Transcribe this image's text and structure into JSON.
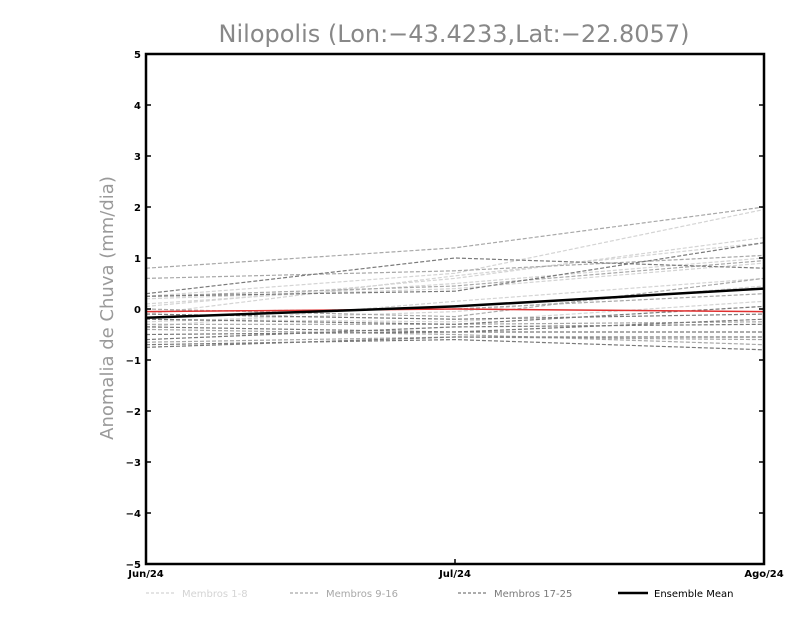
{
  "chart_data": {
    "type": "line",
    "title": "Nilopolis (Lon:−43.4233,Lat:−22.8057)",
    "ylabel": "Anomalia de Chuva (mm/dia)",
    "xlabel": "",
    "categories": [
      "Jun/24",
      "Jul/24",
      "Ago/24"
    ],
    "ylim": [
      -5,
      5
    ],
    "yticks": [
      "5",
      "4",
      "3",
      "2",
      "1",
      "0",
      "−1",
      "−2",
      "−3",
      "−4",
      "−5"
    ],
    "grid": false,
    "legend_position": "bottom",
    "series": [
      {
        "group": 0,
        "values": [
          0.25,
          0.7,
          1.95
        ]
      },
      {
        "group": 0,
        "values": [
          0.05,
          0.6,
          1.4
        ]
      },
      {
        "group": 0,
        "values": [
          -0.1,
          0.65,
          1.3
        ]
      },
      {
        "group": 0,
        "values": [
          0.1,
          0.5,
          1.0
        ]
      },
      {
        "group": 0,
        "values": [
          -0.25,
          -0.05,
          0.45
        ]
      },
      {
        "group": 0,
        "values": [
          -0.35,
          0.15,
          0.6
        ]
      },
      {
        "group": 0,
        "values": [
          -0.2,
          -0.25,
          0.15
        ]
      },
      {
        "group": 0,
        "values": [
          0.2,
          0.4,
          0.9
        ]
      },
      {
        "group": 1,
        "values": [
          0.8,
          1.2,
          2.0
        ]
      },
      {
        "group": 1,
        "values": [
          0.6,
          0.75,
          1.05
        ]
      },
      {
        "group": 1,
        "values": [
          0.25,
          0.45,
          0.95
        ]
      },
      {
        "group": 1,
        "values": [
          -0.05,
          0.0,
          0.3
        ]
      },
      {
        "group": 1,
        "values": [
          -0.4,
          -0.5,
          -0.7
        ]
      },
      {
        "group": 1,
        "values": [
          -0.65,
          -0.55,
          -0.6
        ]
      },
      {
        "group": 1,
        "values": [
          -0.3,
          -0.3,
          -0.25
        ]
      },
      {
        "group": 1,
        "values": [
          0.0,
          -0.15,
          0.6
        ]
      },
      {
        "group": 2,
        "values": [
          0.3,
          1.0,
          0.8
        ]
      },
      {
        "group": 2,
        "values": [
          0.25,
          0.35,
          1.3
        ]
      },
      {
        "group": 2,
        "values": [
          -0.1,
          -0.2,
          -0.1
        ]
      },
      {
        "group": 2,
        "values": [
          -0.2,
          -0.3,
          0.05
        ]
      },
      {
        "group": 2,
        "values": [
          -0.5,
          -0.45,
          -0.45
        ]
      },
      {
        "group": 2,
        "values": [
          -0.7,
          -0.6,
          -0.8
        ]
      },
      {
        "group": 2,
        "values": [
          -0.75,
          -0.55,
          -0.55
        ]
      },
      {
        "group": 2,
        "values": [
          -0.35,
          -0.45,
          -0.2
        ]
      },
      {
        "group": 2,
        "values": [
          -0.6,
          -0.35,
          -0.3
        ]
      }
    ],
    "red_series": {
      "values": [
        -0.05,
        0.0,
        -0.05
      ],
      "color": "#e03030"
    },
    "ensemble_mean": {
      "name": "Ensemble Mean",
      "values": [
        -0.17,
        0.05,
        0.4
      ],
      "color": "#000000"
    },
    "legend": [
      {
        "label": "Membros 1-8",
        "color": "#d4d4d4",
        "dash": true
      },
      {
        "label": "Membros 9-16",
        "color": "#a8a8a8",
        "dash": true
      },
      {
        "label": "Membros 17-25",
        "color": "#7a7a7a",
        "dash": true
      },
      {
        "label": "Ensemble Mean",
        "color": "#000000",
        "dash": false
      }
    ],
    "group_colors": [
      "#d4d4d4",
      "#a8a8a8",
      "#7a7a7a"
    ]
  }
}
